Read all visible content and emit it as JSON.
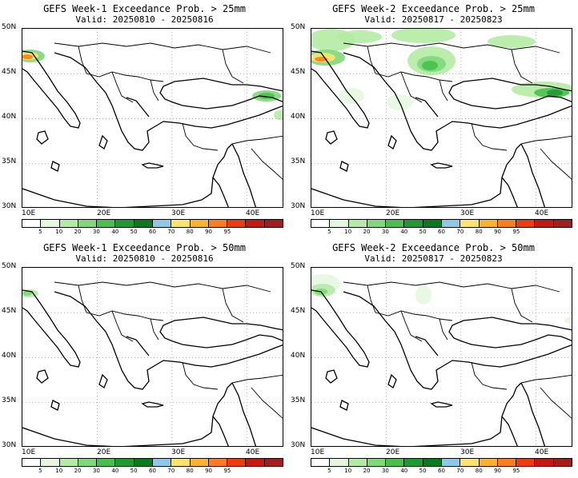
{
  "panels": [
    {
      "title": "GEFS Week-1 Exceedance Prob. > 25mm",
      "valid": "Valid: 20250810 - 20250816"
    },
    {
      "title": "GEFS Week-2 Exceedance Prob. > 25mm",
      "valid": "Valid: 20250817 - 20250823"
    },
    {
      "title": "GEFS Week-1 Exceedance Prob. > 50mm",
      "valid": "Valid: 20250810 - 20250816"
    },
    {
      "title": "GEFS Week-2 Exceedance Prob. > 50mm",
      "valid": "Valid: 20250817 - 20250823"
    }
  ],
  "lat_labels": [
    "50N",
    "45N",
    "40N",
    "35N",
    "30N"
  ],
  "lon_labels": [
    "10E",
    "20E",
    "30E",
    "40E"
  ],
  "colorbar": {
    "labels": [
      "5",
      "10",
      "20",
      "30",
      "40",
      "50",
      "60",
      "70",
      "80",
      "90",
      "95"
    ],
    "colors": [
      "#ffffff",
      "#e6f7e0",
      "#b4eba4",
      "#7fd87a",
      "#49c04e",
      "#1f9a32",
      "#0a7a1e",
      "#8fc7e6",
      "#ffe36b",
      "#ffb22b",
      "#ff7d1a",
      "#f03a0f",
      "#c41a12",
      "#a31d1d"
    ]
  }
}
